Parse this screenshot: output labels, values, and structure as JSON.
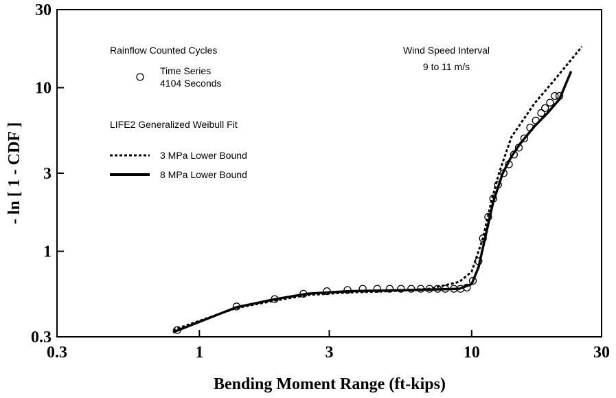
{
  "chart_data": {
    "type": "scatter",
    "x_label": "Bending Moment Range (ft-kips)",
    "y_label": "- ln [ 1 - CDF ]",
    "xscale": "log",
    "yscale": "log",
    "xlim": [
      0.3,
      30
    ],
    "ylim": [
      0.3,
      30
    ],
    "xticks": [
      0.3,
      1,
      3,
      10,
      30
    ],
    "yticks": [
      0.3,
      1,
      3,
      10,
      30
    ],
    "legend_groups": [
      "Rainflow Counted Cycles",
      "LIFE2 Generalized Weibull Fit"
    ],
    "legend_note": "4104 Seconds",
    "annotations": [
      "Wind Speed Interval",
      "9 to 11 m/s"
    ],
    "series": [
      {
        "name": "Time Series",
        "kind": "scatter",
        "color": "#000000",
        "x": [
          0.83,
          1.37,
          1.89,
          2.41,
          2.94,
          3.5,
          3.98,
          4.5,
          5.0,
          5.5,
          6.0,
          6.5,
          7.0,
          7.5,
          8.0,
          8.6,
          9.1,
          9.6,
          10.1,
          10.6,
          11.0,
          11.5,
          12.0,
          12.5,
          13.1,
          13.7,
          14.3,
          14.9,
          15.6,
          16.4,
          17.2,
          18.0,
          18.6,
          19.4,
          20.2,
          21.0
        ],
        "values": [
          0.33,
          0.46,
          0.51,
          0.55,
          0.57,
          0.58,
          0.59,
          0.59,
          0.59,
          0.59,
          0.59,
          0.59,
          0.59,
          0.59,
          0.59,
          0.59,
          0.59,
          0.6,
          0.66,
          0.87,
          1.2,
          1.62,
          2.1,
          2.55,
          3.0,
          3.4,
          3.9,
          4.3,
          4.9,
          5.7,
          6.3,
          7.0,
          7.5,
          8.1,
          8.9,
          8.9
        ]
      },
      {
        "name": "3 MPa Lower Bound",
        "kind": "line",
        "dash": true,
        "color": "#000000",
        "x": [
          0.8,
          1.37,
          1.9,
          2.5,
          3.5,
          5,
          7,
          9,
          10,
          11,
          11.8,
          12.6,
          14,
          17,
          20,
          25.4
        ],
        "values": [
          0.33,
          0.45,
          0.5,
          0.54,
          0.56,
          0.57,
          0.59,
          0.65,
          0.75,
          1.2,
          2.0,
          3.0,
          5.0,
          8.0,
          11.0,
          17.8
        ]
      },
      {
        "name": "8 MPa Lower Bound",
        "kind": "line",
        "dash": false,
        "color": "#000000",
        "x": [
          0.8,
          1.37,
          1.9,
          2.5,
          3.5,
          6,
          9,
          10,
          10.6,
          11.2,
          12,
          13,
          14,
          15,
          17,
          19,
          21,
          23.2
        ],
        "values": [
          0.32,
          0.455,
          0.51,
          0.55,
          0.57,
          0.58,
          0.59,
          0.63,
          0.8,
          1.2,
          2.0,
          3.0,
          3.8,
          4.5,
          5.8,
          7.0,
          8.5,
          12.6
        ]
      }
    ]
  }
}
